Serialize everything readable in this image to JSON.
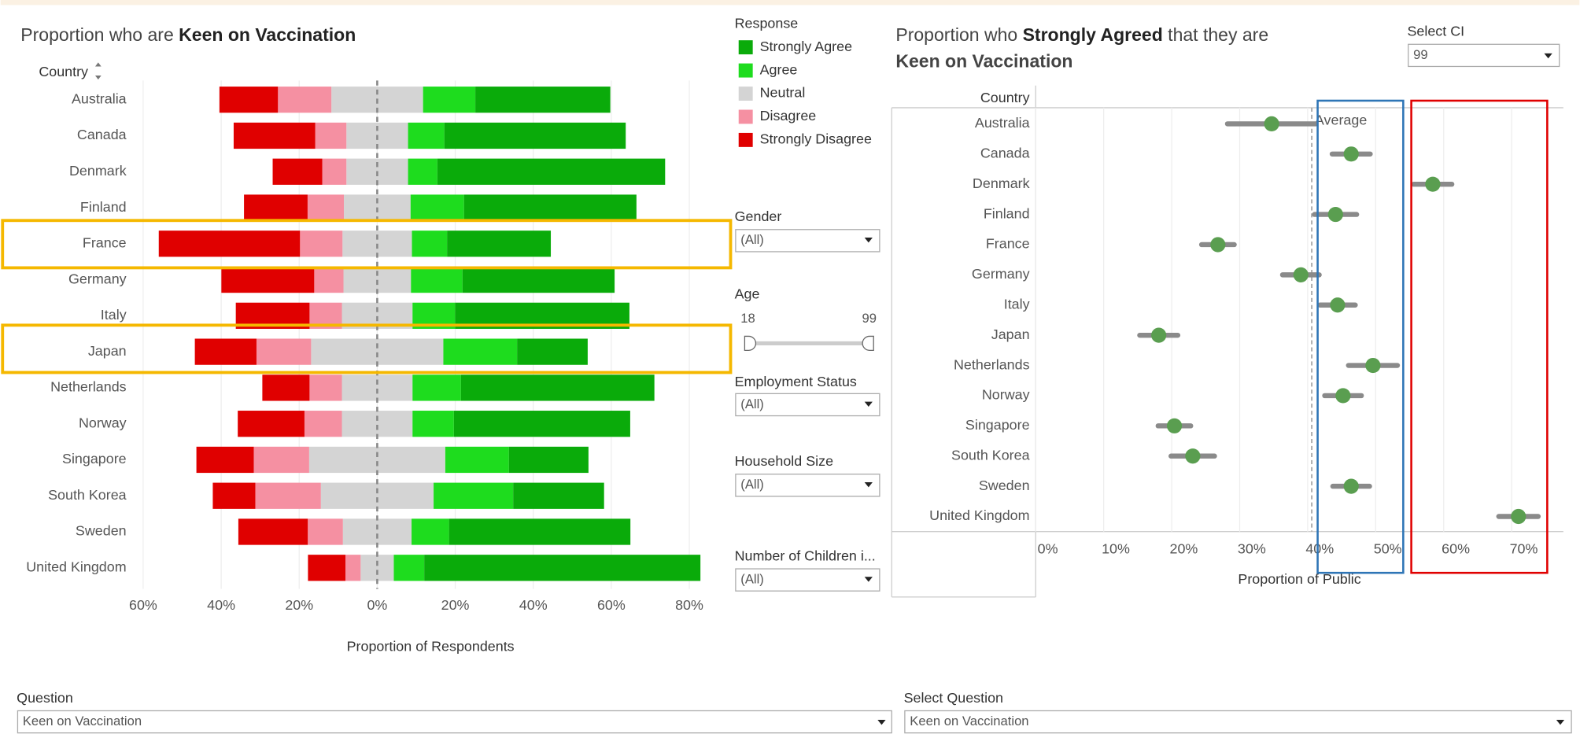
{
  "chart_data": [
    {
      "type": "diverging-bar",
      "title": "Proportion who are",
      "title_emphasis": "Keen on Vaccination",
      "y_header": "Country",
      "x_label": "Proportion of Respondents",
      "legend_title": "Response",
      "categories": [
        "Australia",
        "Canada",
        "Denmark",
        "Finland",
        "France",
        "Germany",
        "Italy",
        "Japan",
        "Netherlands",
        "Norway",
        "Singapore",
        "South Korea",
        "Sweden",
        "United Kingdom"
      ],
      "series": [
        {
          "name": "Strongly Agree",
          "color": "#0aab0a",
          "values": [
            34.6,
            46.5,
            58.4,
            44.2,
            26.6,
            39.0,
            44.7,
            18.1,
            49.6,
            45.2,
            20.4,
            23.3,
            46.5,
            70.8
          ]
        },
        {
          "name": "Agree",
          "color": "#1edc1e",
          "values": [
            13.4,
            9.3,
            7.5,
            13.7,
            9.0,
            13.2,
            10.9,
            18.9,
            12.4,
            10.6,
            16.3,
            20.4,
            9.6,
            7.8
          ]
        },
        {
          "name": "Neutral",
          "color": "#d4d4d4",
          "values": [
            23.5,
            15.8,
            15.8,
            17.1,
            17.8,
            17.3,
            18.1,
            33.9,
            18.1,
            18.1,
            34.9,
            28.9,
            17.6,
            8.5
          ]
        },
        {
          "name": "Disagree",
          "color": "#f590a2",
          "values": [
            13.7,
            8.0,
            6.2,
            9.3,
            10.9,
            7.5,
            8.3,
            14.0,
            8.3,
            9.6,
            14.2,
            16.8,
            9.0,
            3.9
          ]
        },
        {
          "name": "Strongly Disagree",
          "color": "#e00000",
          "values": [
            15.0,
            20.9,
            12.7,
            16.3,
            36.2,
            23.8,
            18.9,
            15.8,
            12.1,
            17.1,
            14.7,
            10.9,
            17.8,
            9.6
          ]
        }
      ],
      "xlim": [
        -63,
        88
      ],
      "xticks": [
        {
          "value": -60,
          "label": "60%"
        },
        {
          "value": -40,
          "label": "40%"
        },
        {
          "value": -20,
          "label": "20%"
        },
        {
          "value": 0,
          "label": "0%"
        },
        {
          "value": 20,
          "label": "20%"
        },
        {
          "value": 40,
          "label": "40%"
        },
        {
          "value": 60,
          "label": "60%"
        },
        {
          "value": 80,
          "label": "80%"
        }
      ],
      "grid": true
    },
    {
      "type": "dot-ci",
      "title_parts": [
        "Proportion who",
        "Strongly Agreed",
        "that they are",
        "Keen on Vaccination"
      ],
      "y_header": "Country",
      "x_label": "Proportion of Public",
      "categories": [
        "Australia",
        "Canada",
        "Denmark",
        "Finland",
        "France",
        "Germany",
        "Italy",
        "Japan",
        "Netherlands",
        "Norway",
        "Singapore",
        "South Korea",
        "Sweden",
        "United Kingdom"
      ],
      "values": [
        34.7,
        46.4,
        58.4,
        44.1,
        26.8,
        39.0,
        44.4,
        18.1,
        49.6,
        45.2,
        20.4,
        23.1,
        46.4,
        71.0
      ],
      "errors": [
        6.5,
        2.8,
        2.8,
        3.1,
        2.4,
        2.7,
        2.6,
        2.8,
        3.6,
        2.7,
        2.4,
        3.2,
        2.7,
        2.9
      ],
      "color": "#5a9e50",
      "error_color": "#8a8a8a",
      "average": 40.6,
      "average_label": "Average",
      "xlim": [
        0,
        77.6
      ],
      "xticks": [
        {
          "value": 0,
          "label": "0%"
        },
        {
          "value": 10,
          "label": "10%"
        },
        {
          "value": 20,
          "label": "20%"
        },
        {
          "value": 30,
          "label": "30%"
        },
        {
          "value": 40,
          "label": "40%"
        },
        {
          "value": 50,
          "label": "50%"
        },
        {
          "value": 60,
          "label": "60%"
        },
        {
          "value": 70,
          "label": "70%"
        }
      ],
      "grid": true
    }
  ],
  "controls": {
    "gender": {
      "label": "Gender",
      "value": "(All)"
    },
    "age": {
      "label": "Age",
      "min": 18,
      "max": 99
    },
    "employment": {
      "label": "Employment Status",
      "value": "(All)"
    },
    "household": {
      "label": "Household Size",
      "value": "(All)"
    },
    "children": {
      "label": "Number of Children i...",
      "value": "(All)"
    },
    "ci": {
      "label": "Select CI",
      "value": 99
    },
    "question": {
      "label": "Question",
      "value": "Keen on Vaccination"
    },
    "select_question": {
      "label": "Select Question",
      "value": "Keen on Vaccination"
    }
  }
}
